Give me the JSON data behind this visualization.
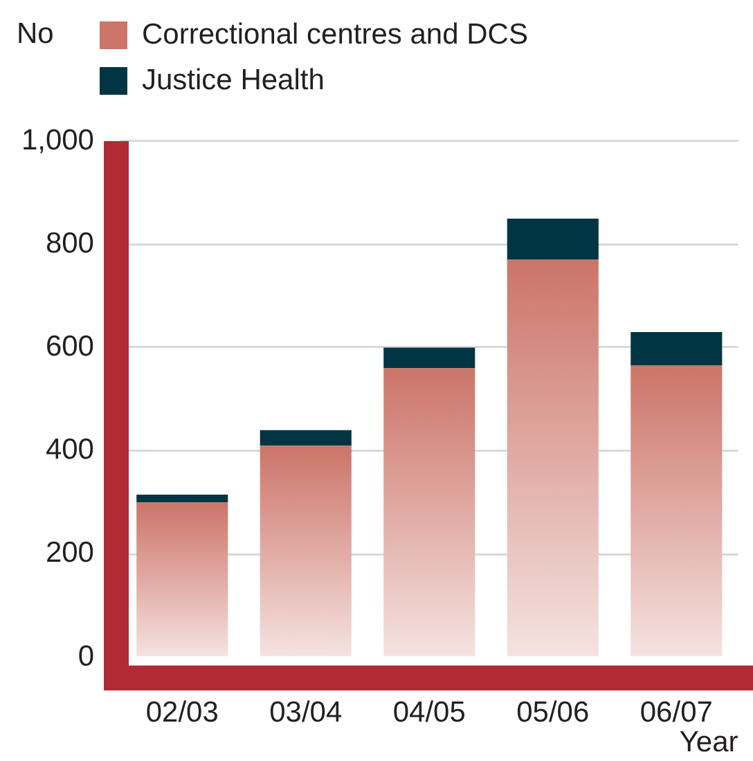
{
  "chart_data": {
    "type": "bar",
    "ylabel": "No",
    "xlabel": "Year",
    "categories": [
      "02/03",
      "03/04",
      "04/05",
      "05/06",
      "06/07"
    ],
    "series": [
      {
        "name": "Correctional centres and DCS",
        "color": "#cc7468",
        "values": [
          300,
          410,
          560,
          770,
          565
        ]
      },
      {
        "name": "Justice Health",
        "color": "#023543",
        "values": [
          15,
          30,
          40,
          80,
          65
        ]
      }
    ],
    "stacked": true,
    "ylim": [
      0,
      1000
    ],
    "yticks": [
      0,
      200,
      400,
      600,
      800,
      {
        "value": 1000,
        "label": "1,000"
      }
    ],
    "grid": "y",
    "legend": "top left"
  }
}
